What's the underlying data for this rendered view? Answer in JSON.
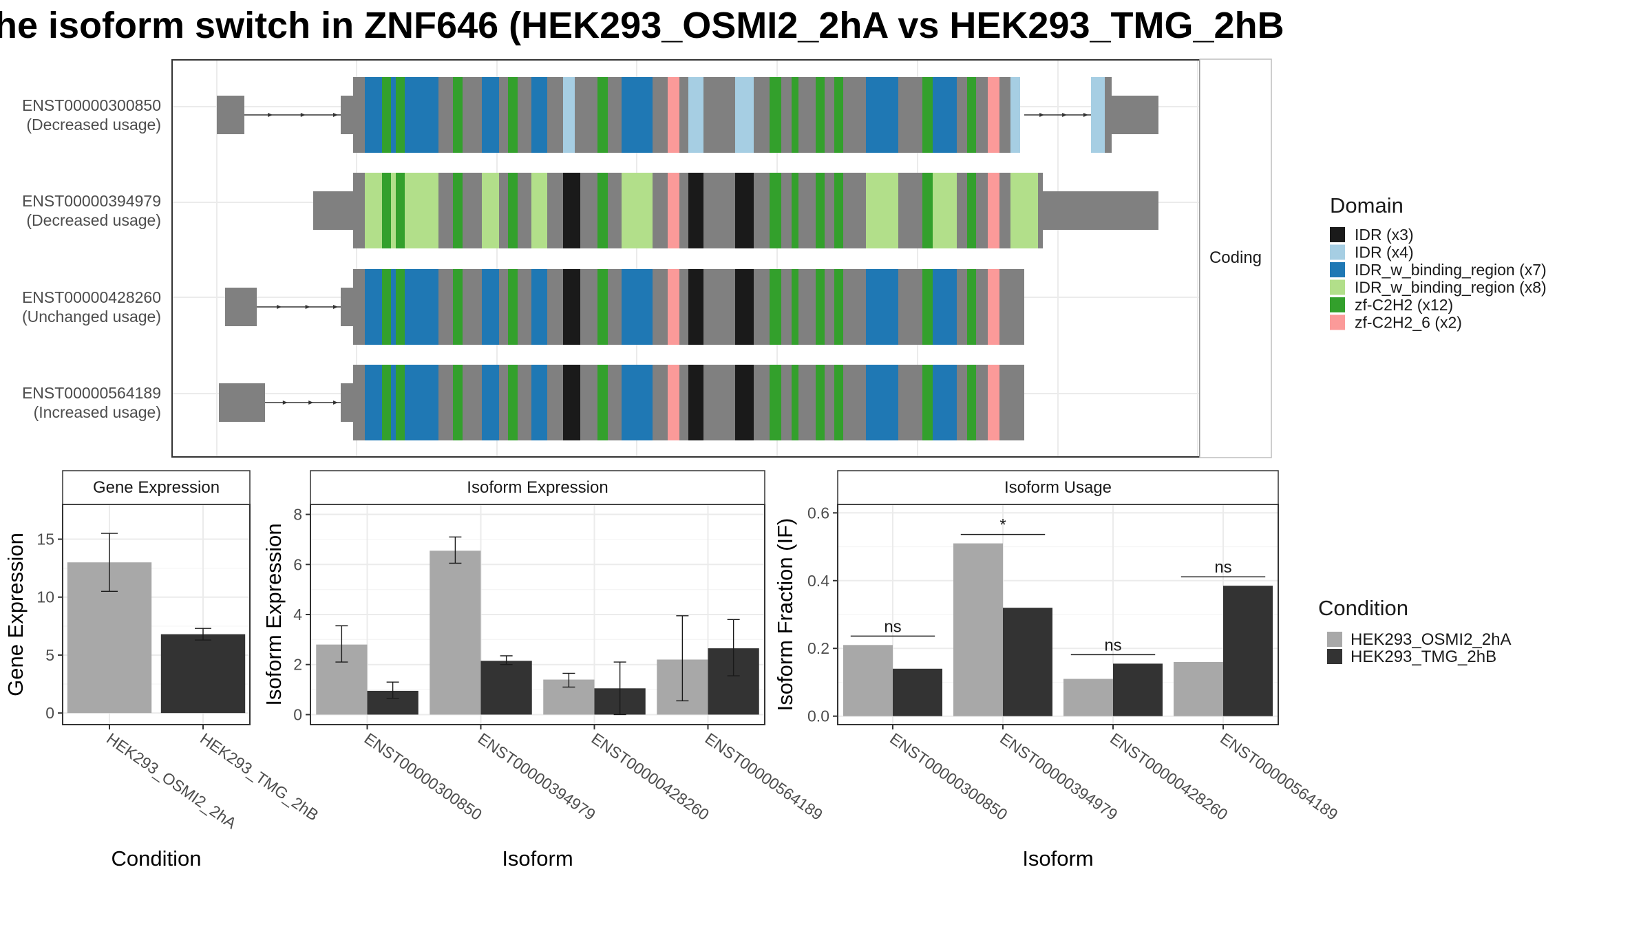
{
  "title": "he isoform switch in ZNF646 (HEK293_OSMI2_2hA vs HEK293_TMG_2hB",
  "colors": {
    "utr": "#808080",
    "idr": "#1a1a1a",
    "idr_light": "#a6cee3",
    "idr_bind_dark": "#1f78b4",
    "idr_bind_light": "#b2df8a",
    "zf": "#33a02c",
    "zf6": "#fb9a99",
    "condA": "#a8a8a8",
    "condB": "#333333"
  },
  "structure": {
    "facet_label": "Coding",
    "transcripts": [
      {
        "id": "ENST00000300850",
        "usage": "(Decreased usage)"
      },
      {
        "id": "ENST00000394979",
        "usage": "(Decreased usage)"
      },
      {
        "id": "ENST00000428260",
        "usage": "(Unchanged usage)"
      },
      {
        "id": "ENST00000564189",
        "usage": "(Increased usage)"
      }
    ]
  },
  "domain_legend": {
    "title": "Domain",
    "items": [
      {
        "label": "IDR (x3)",
        "color": "#1a1a1a"
      },
      {
        "label": "IDR (x4)",
        "color": "#a6cee3"
      },
      {
        "label": "IDR_w_binding_region (x7)",
        "color": "#1f78b4"
      },
      {
        "label": "IDR_w_binding_region (x8)",
        "color": "#b2df8a"
      },
      {
        "label": "zf-C2H2 (x12)",
        "color": "#33a02c"
      },
      {
        "label": "zf-C2H2_6 (x2)",
        "color": "#fb9a99"
      }
    ]
  },
  "condition_legend": {
    "title": "Condition",
    "items": [
      {
        "label": "HEK293_OSMI2_2hA",
        "color": "#a8a8a8"
      },
      {
        "label": "HEK293_TMG_2hB",
        "color": "#333333"
      }
    ]
  },
  "chart_data": [
    {
      "type": "bar",
      "title": "Gene Expression",
      "xlabel": "Condition",
      "ylabel": "Gene Expression",
      "ylim": [
        -1,
        18
      ],
      "yticks": [
        0,
        5,
        10,
        15
      ],
      "categories": [
        "HEK293_OSMI2_2hA",
        "HEK293_TMG_2hB"
      ],
      "values": [
        13.0,
        6.8
      ],
      "error": [
        [
          10.5,
          15.5
        ],
        [
          6.3,
          7.3
        ]
      ]
    },
    {
      "type": "bar",
      "title": "Isoform Expression",
      "xlabel": "Isoform",
      "ylabel": "Isoform Expression",
      "ylim": [
        -0.4,
        8.4
      ],
      "yticks": [
        0,
        2,
        4,
        6,
        8
      ],
      "categories": [
        "ENST00000300850",
        "ENST00000394979",
        "ENST00000428260",
        "ENST00000564189"
      ],
      "series": [
        {
          "name": "HEK293_OSMI2_2hA",
          "values": [
            2.8,
            6.55,
            1.4,
            2.2
          ],
          "error": [
            [
              2.1,
              3.55
            ],
            [
              6.05,
              7.1
            ],
            [
              1.1,
              1.65
            ],
            [
              0.55,
              3.95
            ]
          ]
        },
        {
          "name": "HEK293_TMG_2hB",
          "values": [
            0.95,
            2.15,
            1.05,
            2.65
          ],
          "error": [
            [
              0.65,
              1.3
            ],
            [
              2.0,
              2.35
            ],
            [
              0.0,
              2.1
            ],
            [
              1.55,
              3.8
            ]
          ]
        }
      ]
    },
    {
      "type": "bar",
      "title": "Isoform Usage",
      "xlabel": "Isoform",
      "ylabel": "Isoform Fraction (IF)",
      "ylim": [
        -0.025,
        0.625
      ],
      "yticks": [
        0.0,
        0.2,
        0.4,
        0.6
      ],
      "ytick_labels": [
        "0.0",
        "0.2",
        "0.4",
        "0.6"
      ],
      "categories": [
        "ENST00000300850",
        "ENST00000394979",
        "ENST00000428260",
        "ENST00000564189"
      ],
      "series": [
        {
          "name": "HEK293_OSMI2_2hA",
          "values": [
            0.21,
            0.51,
            0.11,
            0.16
          ]
        },
        {
          "name": "HEK293_TMG_2hB",
          "values": [
            0.14,
            0.32,
            0.155,
            0.385
          ]
        }
      ],
      "significance": [
        "ns",
        "*",
        "ns",
        "ns"
      ]
    }
  ]
}
